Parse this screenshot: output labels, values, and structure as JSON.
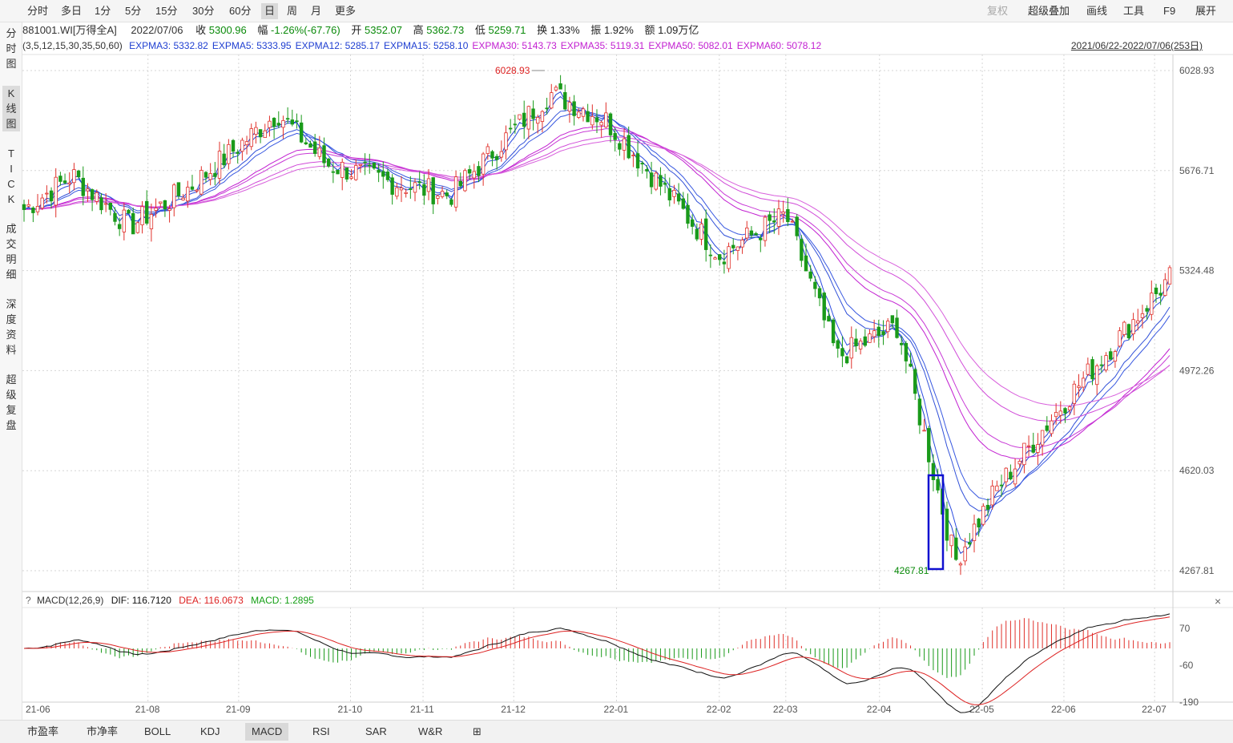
{
  "toolbar": {
    "periods": [
      "分时",
      "多日",
      "1分",
      "5分",
      "15分",
      "30分",
      "60分",
      "日",
      "周",
      "月",
      "更多"
    ],
    "active_period": "日",
    "right": [
      "复权",
      "超级叠加",
      "画线",
      "工具",
      "F9",
      "展开"
    ]
  },
  "leftbar": [
    "分时图",
    "K线图",
    "TICK",
    "成交明细",
    "深度资料",
    "超级复盘"
  ],
  "info": {
    "code": "881001.WI[万得全A]",
    "date": "2022/07/06",
    "close_label": "收",
    "close": "5300.96",
    "change_label": "幅",
    "change": "-1.26%(-67.76)",
    "open_label": "开",
    "open": "5352.07",
    "high_label": "高",
    "high": "5362.73",
    "low_label": "低",
    "low": "5259.71",
    "turnover_label": "换",
    "turnover": "1.33%",
    "amplitude_label": "振",
    "amplitude": "1.92%",
    "amount_label": "额",
    "amount": "1.09万亿"
  },
  "ma": {
    "params": "(3,5,12,15,30,35,50,60)",
    "items": [
      {
        "text": "EXPMA3: 5332.82",
        "color": "#1f3fd1"
      },
      {
        "text": "EXPMA5: 5333.95",
        "color": "#1f3fd1"
      },
      {
        "text": "EXPMA12: 5285.17",
        "color": "#1f3fd1"
      },
      {
        "text": "EXPMA15: 5258.10",
        "color": "#1f3fd1"
      },
      {
        "text": "EXPMA30: 5143.73",
        "color": "#c21fd1"
      },
      {
        "text": "EXPMA35: 5119.31",
        "color": "#c21fd1"
      },
      {
        "text": "EXPMA50: 5082.01",
        "color": "#c21fd1"
      },
      {
        "text": "EXPMA60: 5078.12",
        "color": "#c21fd1"
      }
    ]
  },
  "daterange": "2021/06/22-2022/07/06(253日)",
  "macd_info": {
    "q": "?",
    "name": "MACD(12,26,9)",
    "dif": "DIF: 116.7120",
    "dea": "DEA: 116.0673",
    "macd": "MACD: 1.2895"
  },
  "bottom_tabs": [
    "市盈率",
    "市净率",
    "BOLL",
    "KDJ",
    "MACD",
    "RSI",
    "SAR",
    "W&R"
  ],
  "active_bottom": "MACD",
  "chart_data": {
    "type": "candlestick",
    "y_ticks": [
      6028.93,
      5676.71,
      5324.48,
      4972.26,
      4620.03,
      4267.81
    ],
    "y_range": [
      4267.81,
      6028.93
    ],
    "x_ticks": [
      "21-06",
      "21-08",
      "21-09",
      "21-10",
      "21-11",
      "21-12",
      "22-01",
      "22-02",
      "22-03",
      "22-04",
      "22-05",
      "22-06",
      "22-07"
    ],
    "max_annotation": "6028.93",
    "min_annotation": "4267.81",
    "close_path_keypoints": [
      {
        "x": "2021-06-22",
        "y": 5540
      },
      {
        "x": "2021-07-08",
        "y": 5660
      },
      {
        "x": "2021-07-27",
        "y": 5480
      },
      {
        "x": "2021-08-16",
        "y": 5620
      },
      {
        "x": "2021-09-14",
        "y": 5880
      },
      {
        "x": "2021-09-30",
        "y": 5700
      },
      {
        "x": "2021-10-20",
        "y": 5640
      },
      {
        "x": "2021-11-10",
        "y": 5590
      },
      {
        "x": "2021-12-13",
        "y": 5950
      },
      {
        "x": "2021-12-31",
        "y": 5860
      },
      {
        "x": "2022-02-07",
        "y": 5380
      },
      {
        "x": "2022-03-01",
        "y": 5520
      },
      {
        "x": "2022-03-18",
        "y": 5020
      },
      {
        "x": "2022-04-07",
        "y": 5130
      },
      {
        "x": "2022-04-26",
        "y": 4300
      },
      {
        "x": "2022-05-10",
        "y": 4560
      },
      {
        "x": "2022-06-01",
        "y": 4860
      },
      {
        "x": "2022-07-06",
        "y": 5300
      }
    ],
    "macd_ticks": [
      70,
      -60,
      -190
    ]
  }
}
